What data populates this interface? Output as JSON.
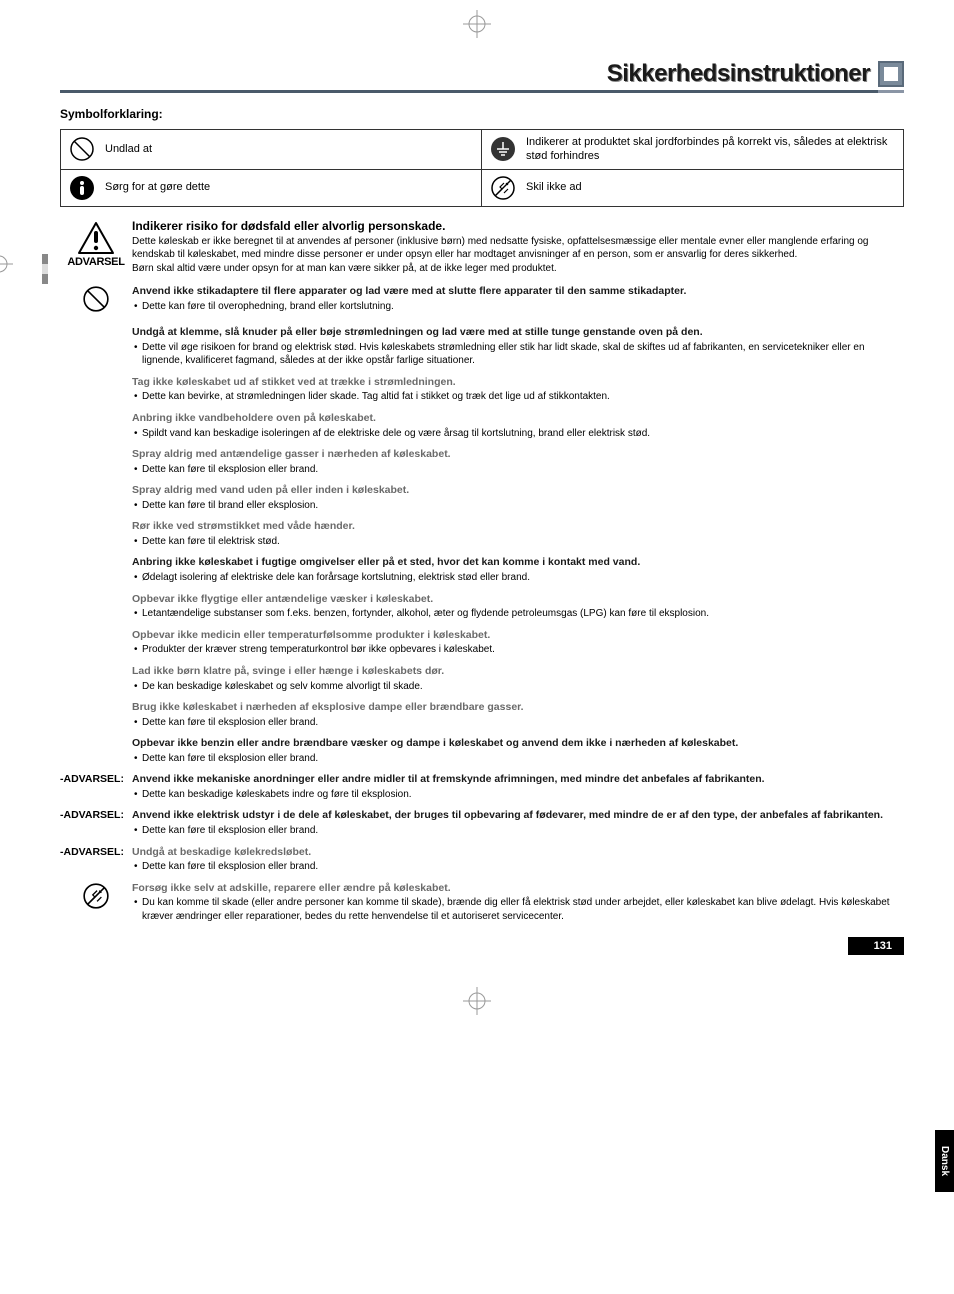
{
  "page": {
    "title": "Sikkerhedsinstruktioner",
    "number": "131",
    "side_tab": "Dansk"
  },
  "symbol": {
    "heading": "Symbolforklaring:",
    "cells": {
      "undlad": "Undlad at",
      "jordforbind": "Indikerer at produktet skal jordforbindes på korrekt vis, således at elektrisk stød forhindres",
      "sorg": "Sørg for at gøre dette",
      "skil": "Skil ikke ad"
    }
  },
  "warning": {
    "label": "ADVARSEL",
    "title": "Indikerer risiko for dødsfald eller alvorlig personskade.",
    "text": "Dette køleskab er ikke beregnet til at anvendes af personer (inklusive børn) med nedsatte fysiske, opfattelsesmæssige eller mentale evner eller manglende erfaring og kendskab til køleskabet, med mindre disse personer er under opsyn eller har modtaget anvisninger af en person, som er ansvarlig for deres sikkerhed.\nBørn skal altid være under opsyn for at man kan være sikker på, at de ikke leger med produktet."
  },
  "items": [
    {
      "icon": "prohibit",
      "head_dark": true,
      "head": "Anvend ikke stikadaptere til flere apparater og lad være med at slutte flere apparater til den samme stikadapter.",
      "bullets": [
        "Dette kan føre til overophedning, brand eller kortslutning."
      ]
    },
    {
      "head_dark": true,
      "head": "Undgå at klemme, slå knuder på eller bøje strømledningen og lad være med at stille tunge genstande oven på den.",
      "bullets": [
        "Dette vil øge risikoen for brand og elektrisk stød. Hvis køleskabets strømledning eller stik har lidt skade, skal de skiftes ud af fabrikanten, en servicetekniker eller en lignende, kvalificeret fagmand, således at der ikke opstår farlige situationer."
      ]
    },
    {
      "head": "Tag ikke køleskabet ud af stikket ved at trække i strømledningen.",
      "bullets": [
        "Dette kan bevirke, at strømledningen lider skade. Tag altid fat i stikket og træk det lige ud af stikkontakten."
      ]
    },
    {
      "head": "Anbring ikke vandbeholdere oven på køleskabet.",
      "bullets": [
        "Spildt vand kan beskadige isoleringen af de elektriske dele og være årsag til kortslutning, brand eller elektrisk stød."
      ]
    },
    {
      "head": "Spray aldrig med antændelige gasser i nærheden af køleskabet.",
      "bullets": [
        "Dette kan føre til eksplosion eller brand."
      ]
    },
    {
      "head": "Spray aldrig med vand uden på eller inden i køleskabet.",
      "bullets": [
        "Dette kan føre til brand eller eksplosion."
      ]
    },
    {
      "head": "Rør ikke ved strømstikket med våde hænder.",
      "bullets": [
        "Dette kan føre til elektrisk stød."
      ]
    },
    {
      "head_dark": true,
      "head": "Anbring ikke køleskabet i fugtige omgivelser eller på et sted, hvor det kan komme i kontakt med vand.",
      "bullets": [
        "Ødelagt isolering af elektriske dele kan forårsage kortslutning, elektrisk stød eller brand."
      ]
    },
    {
      "head": "Opbevar ikke flygtige eller antændelige væsker i køleskabet.",
      "bullets": [
        "Letantændelige substanser som f.eks. benzen, fortynder, alkohol, æter og flydende petroleumsgas (LPG) kan føre til eksplosion."
      ]
    },
    {
      "head": "Opbevar ikke medicin eller temperaturfølsomme produkter i køleskabet.",
      "bullets": [
        "Produkter der kræver streng temperaturkontrol bør ikke opbevares i køleskabet."
      ]
    },
    {
      "head": "Lad ikke børn klatre på, svinge i eller hænge i køleskabets dør.",
      "bullets": [
        "De kan beskadige køleskabet og selv komme alvorligt til skade."
      ]
    },
    {
      "head": "Brug ikke køleskabet i nærheden af eksplosive dampe eller brændbare gasser.",
      "bullets": [
        "Dette kan føre til eksplosion eller brand."
      ]
    },
    {
      "head_dark": true,
      "head": "Opbevar ikke benzin eller andre brændbare væsker og dampe i køleskabet og anvend dem ikke i nærheden af køleskabet.",
      "bullets": [
        "Dette kan føre til eksplosion eller brand."
      ]
    }
  ],
  "advarsel_rows": [
    {
      "label": "-ADVARSEL:",
      "head_dark": true,
      "head": "Anvend ikke mekaniske anordninger eller andre midler til at fremskynde afrimningen, med mindre det anbefales af fabrikanten.",
      "bullets": [
        "Dette kan beskadige køleskabets indre og føre til eksplosion."
      ]
    },
    {
      "label": "-ADVARSEL:",
      "head_dark": true,
      "head": "Anvend ikke elektrisk udstyr i de dele af køleskabet, der bruges til opbevaring af fødevarer, med mindre de er af den type, der anbefales af fabrikanten.",
      "bullets": [
        "Dette kan føre til eksplosion eller brand."
      ]
    },
    {
      "label": "-ADVARSEL:",
      "head": "Undgå at beskadige kølekredsløbet.",
      "bullets": [
        "Dette kan føre til eksplosion eller brand."
      ]
    }
  ],
  "last_item": {
    "head": "Forsøg ikke selv at adskille, reparere eller ændre på køleskabet.",
    "bullets": [
      "Du kan komme til skade (eller andre personer kan komme til skade), brænde dig eller få elektrisk stød under arbejdet, eller køleskabet kan blive ødelagt. Hvis køleskabet kræver ændringer eller reparationer, bedes du rette henvendelse til et autoriseret servicecenter."
    ]
  },
  "colors": {
    "header_grey": "#7a8a9a",
    "rule_dark": "#4a5a6a",
    "item_head_grey": "#6a6a6a"
  }
}
